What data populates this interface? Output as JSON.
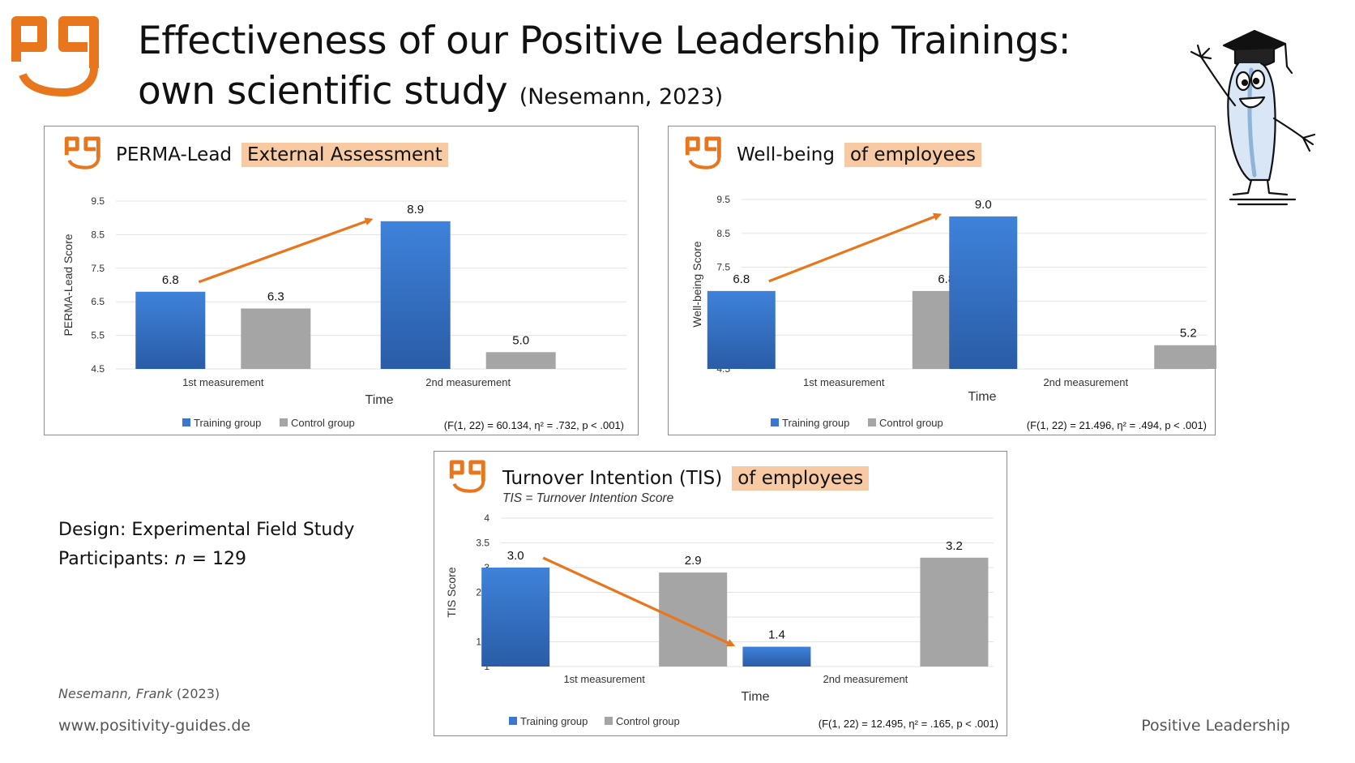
{
  "title": {
    "line1": "Effectiveness of our Positive Leadership Trainings:",
    "line2": "own scientific study",
    "citation": "(Nesemann, 2023)"
  },
  "brand_color": "#E8761C",
  "design": {
    "line1": "Design: Experimental Field Study",
    "participants_label": "Participants: ",
    "n_symbol": "n",
    "n_value": " = 129"
  },
  "footer": {
    "citation_author": "Nesemann, Frank",
    "citation_year": " (2023)",
    "url": "www.positivity-guides.de",
    "brand": "Positive Leadership"
  },
  "panels": [
    {
      "title": "PERMA-Lead",
      "highlight": "External Assessment",
      "subtitle": ""
    },
    {
      "title": "Well-being",
      "highlight": "of employees",
      "subtitle": ""
    },
    {
      "title": "Turnover Intention (TIS)",
      "highlight": "of employees",
      "subtitle": "TIS = Turnover Intention Score"
    }
  ],
  "chart_data": [
    {
      "type": "bar",
      "categories": [
        "1st measurement",
        "2nd measurement"
      ],
      "series": [
        {
          "name": "Training group",
          "values": [
            6.8,
            8.9
          ],
          "color": "#3A78CF"
        },
        {
          "name": "Control group",
          "values": [
            6.3,
            5.0
          ],
          "color": "#A5A5A5"
        }
      ],
      "xlabel": "Time",
      "ylabel": "PERMA-Lead Score",
      "ylim": [
        4.5,
        9.5
      ],
      "yticks": [
        "4.5",
        "5.5",
        "6.5",
        "7.5",
        "8.5",
        "9.5"
      ],
      "data_labels": [
        [
          "6.8",
          "8.9"
        ],
        [
          "6.3",
          "5.0"
        ]
      ],
      "stats": "(F(1, 22) = 60.134, η² = .732, p < .001)",
      "grid": true,
      "legend": "bottom",
      "trend_arrow": "Training group 1st → 2nd measurement"
    },
    {
      "type": "bar",
      "categories": [
        "1st measurement",
        "2nd measurement"
      ],
      "series": [
        {
          "name": "Training group",
          "values": [
            6.8,
            9.0
          ],
          "color": "#3A78CF"
        },
        {
          "name": "Control group",
          "values": [
            6.8,
            5.2
          ],
          "color": "#A5A5A5"
        }
      ],
      "xlabel": "Time",
      "ylabel": "Well-being Score",
      "ylim": [
        4.5,
        9.5
      ],
      "yticks": [
        "4.5",
        "5.5",
        "6.5",
        "7.5",
        "8.5",
        "9.5"
      ],
      "data_labels": [
        [
          "6.8",
          "9.0"
        ],
        [
          "6.8",
          "5.2"
        ]
      ],
      "stats": "(F(1, 22) = 21.496, η² = .494, p < .001)",
      "grid": true,
      "legend": "bottom",
      "trend_arrow": "Training group 1st → 2nd measurement"
    },
    {
      "type": "bar",
      "categories": [
        "1st measurement",
        "2nd measurement"
      ],
      "series": [
        {
          "name": "Training group",
          "values": [
            3.0,
            1.4
          ],
          "color": "#3A78CF"
        },
        {
          "name": "Control group",
          "values": [
            2.9,
            3.2
          ],
          "color": "#A5A5A5"
        }
      ],
      "xlabel": "Time",
      "ylabel": "TIS Score",
      "ylim": [
        1,
        4
      ],
      "yticks": [
        "1",
        "1.5",
        "2",
        "2.5",
        "3",
        "3.5",
        "4"
      ],
      "data_labels": [
        [
          "3.0",
          "1.4"
        ],
        [
          "2.9",
          "3.2"
        ]
      ],
      "stats": "(F(1, 22) = 12.495, η² = .165, p < .001)",
      "grid": true,
      "legend": "bottom",
      "trend_arrow": "Training group 1st → 2nd measurement"
    }
  ]
}
